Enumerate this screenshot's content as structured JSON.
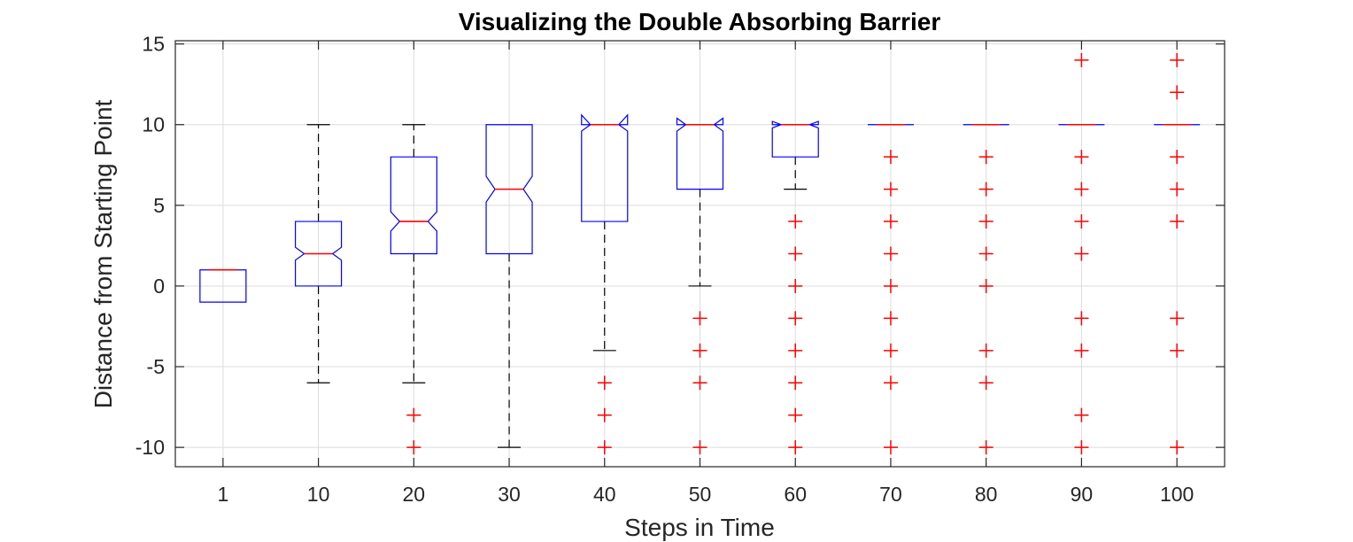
{
  "colors": {
    "box": "#0000ff",
    "median": "#ff0000",
    "whisker": "#000000",
    "outlier": "#ff0000",
    "grid": "#dcdcdc",
    "axis": "#262626"
  },
  "chart_data": {
    "type": "boxplot",
    "title": "Visualizing the Double Absorbing Barrier",
    "xlabel": "Steps in Time",
    "ylabel": "Distance from Starting Point",
    "ylim": [
      -11.2,
      15.2
    ],
    "yticks": [
      -10,
      -5,
      0,
      5,
      10,
      15
    ],
    "grid": true,
    "notched": true,
    "categories": [
      "1",
      "10",
      "20",
      "30",
      "40",
      "50",
      "60",
      "70",
      "80",
      "90",
      "100"
    ],
    "boxes": [
      {
        "label": "1",
        "q1": -1,
        "median": 1,
        "q3": 1,
        "whisker_low": -1,
        "whisker_high": 1,
        "notch_low": 1,
        "notch_high": 1,
        "outliers": []
      },
      {
        "label": "10",
        "q1": 0,
        "median": 2,
        "q3": 4,
        "whisker_low": -6,
        "whisker_high": 10,
        "notch_low": 1.6,
        "notch_high": 2.4,
        "outliers": []
      },
      {
        "label": "20",
        "q1": 2,
        "median": 4,
        "q3": 8,
        "whisker_low": -6,
        "whisker_high": 10,
        "notch_low": 3.4,
        "notch_high": 4.6,
        "outliers": [
          -8,
          -10
        ]
      },
      {
        "label": "30",
        "q1": 2,
        "median": 6,
        "q3": 10,
        "whisker_low": -10,
        "whisker_high": 10,
        "notch_low": 5.2,
        "notch_high": 6.8,
        "outliers": []
      },
      {
        "label": "40",
        "q1": 4,
        "median": 10,
        "q3": 10,
        "whisker_low": -4,
        "whisker_high": 10,
        "notch_low": 9.6,
        "notch_high": 10.6,
        "outliers": [
          -6,
          -8,
          -10
        ]
      },
      {
        "label": "50",
        "q1": 6,
        "median": 10,
        "q3": 10,
        "whisker_low": 0,
        "whisker_high": 10,
        "notch_low": 9.6,
        "notch_high": 10.4,
        "outliers": [
          -2,
          -4,
          -6,
          -10
        ]
      },
      {
        "label": "60",
        "q1": 8,
        "median": 10,
        "q3": 10,
        "whisker_low": 6,
        "whisker_high": 10,
        "notch_low": 9.8,
        "notch_high": 10.2,
        "outliers": [
          4,
          2,
          0,
          -2,
          -4,
          -6,
          -8,
          -10
        ]
      },
      {
        "label": "70",
        "q1": 10,
        "median": 10,
        "q3": 10,
        "whisker_low": 10,
        "whisker_high": 10,
        "notch_low": 10,
        "notch_high": 10,
        "outliers": [
          8,
          6,
          4,
          2,
          0,
          -2,
          -4,
          -6,
          -10
        ]
      },
      {
        "label": "80",
        "q1": 10,
        "median": 10,
        "q3": 10,
        "whisker_low": 10,
        "whisker_high": 10,
        "notch_low": 10,
        "notch_high": 10,
        "outliers": [
          8,
          6,
          4,
          2,
          0,
          -4,
          -6,
          -10
        ]
      },
      {
        "label": "90",
        "q1": 10,
        "median": 10,
        "q3": 10,
        "whisker_low": 10,
        "whisker_high": 10,
        "notch_low": 10,
        "notch_high": 10,
        "outliers": [
          14,
          8,
          6,
          4,
          2,
          -2,
          -4,
          -8,
          -10
        ]
      },
      {
        "label": "100",
        "q1": 10,
        "median": 10,
        "q3": 10,
        "whisker_low": 10,
        "whisker_high": 10,
        "notch_low": 10,
        "notch_high": 10,
        "outliers": [
          14,
          12,
          8,
          6,
          4,
          -2,
          -4,
          -10
        ]
      }
    ]
  }
}
